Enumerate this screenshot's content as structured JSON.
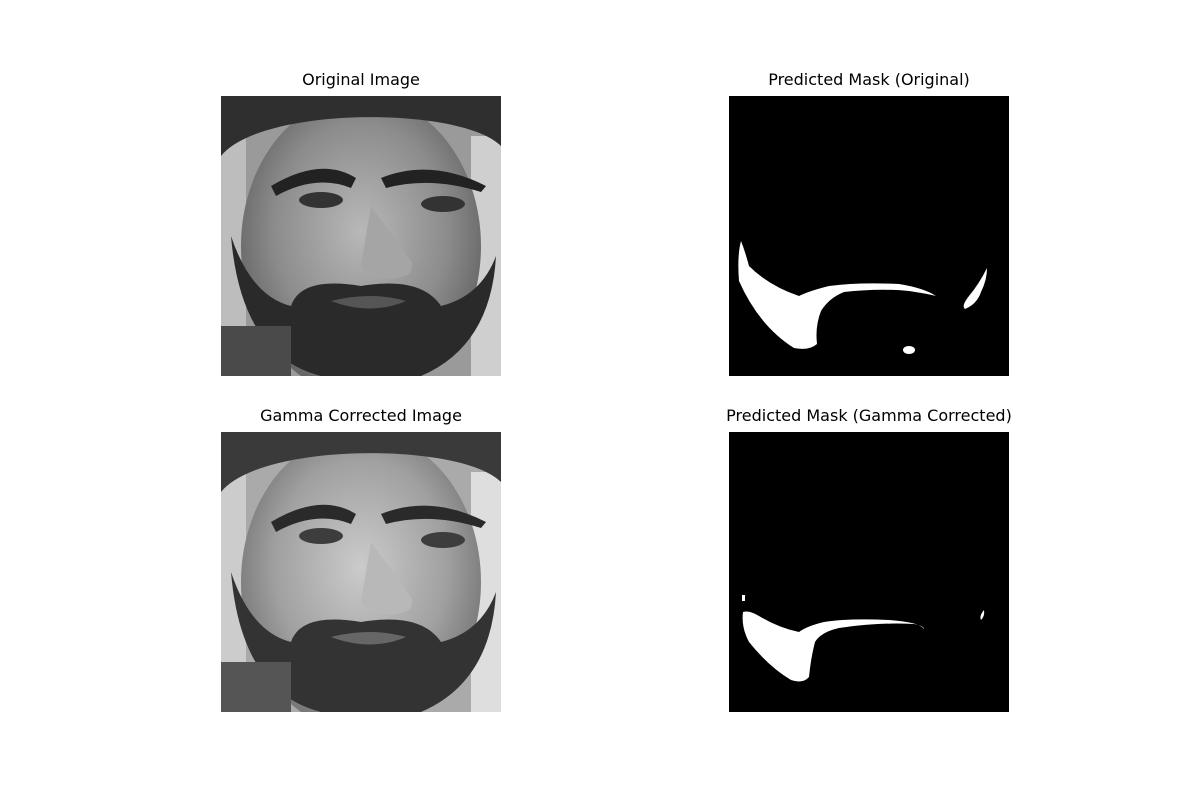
{
  "panels": [
    {
      "title": "Original Image",
      "kind": "grayscale-face-photo"
    },
    {
      "title": "Predicted Mask (Original)",
      "kind": "binary-mask"
    },
    {
      "title": "Gamma Corrected Image",
      "kind": "grayscale-face-photo"
    },
    {
      "title": "Predicted Mask (Gamma Corrected)",
      "kind": "binary-mask"
    }
  ],
  "colors": {
    "background": "#ffffff",
    "mask_bg": "#000000",
    "mask_fg": "#ffffff"
  }
}
